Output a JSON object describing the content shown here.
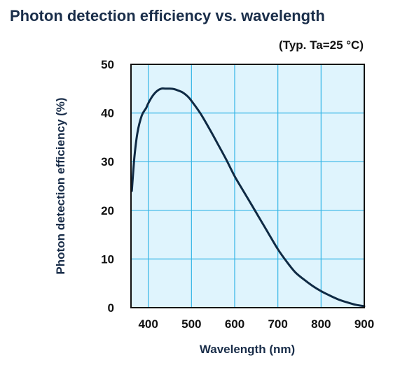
{
  "colors": {
    "title": "#1a2e4a",
    "plot_background": "#dff4fd",
    "grid": "#35b5e6",
    "curve": "#0f2a44",
    "frame": "#111111",
    "text": "#111111"
  },
  "chart_data": {
    "type": "line",
    "title": "Photon detection efficiency vs. wavelength",
    "subtitle": "(Typ. Ta=25 °C)",
    "xlabel": "Wavelength (nm)",
    "ylabel": "Photon detection efficiency (%)",
    "xlim": [
      360,
      900
    ],
    "ylim": [
      0,
      50
    ],
    "grid": true,
    "x_ticks": [
      "400",
      "500",
      "600",
      "700",
      "800",
      "900"
    ],
    "y_ticks": [
      "0",
      "10",
      "20",
      "30",
      "40",
      "50"
    ],
    "series": [
      {
        "x": [
          362,
          368,
          375,
          385,
          395,
          400,
          410,
          420,
          430,
          440,
          450,
          460,
          470,
          480,
          490,
          500,
          520,
          540,
          560,
          580,
          600,
          620,
          640,
          660,
          680,
          700,
          720,
          740,
          760,
          780,
          800,
          820,
          840,
          860,
          880,
          900
        ],
        "y": [
          24,
          31,
          36,
          39.5,
          41,
          42,
          43.5,
          44.5,
          45,
          45,
          45,
          44.9,
          44.6,
          44.2,
          43.5,
          42.5,
          40,
          37,
          33.8,
          30.5,
          27,
          24,
          21,
          18,
          15,
          12,
          9.5,
          7.3,
          5.8,
          4.5,
          3.4,
          2.5,
          1.7,
          1.1,
          0.6,
          0.3
        ]
      }
    ]
  }
}
